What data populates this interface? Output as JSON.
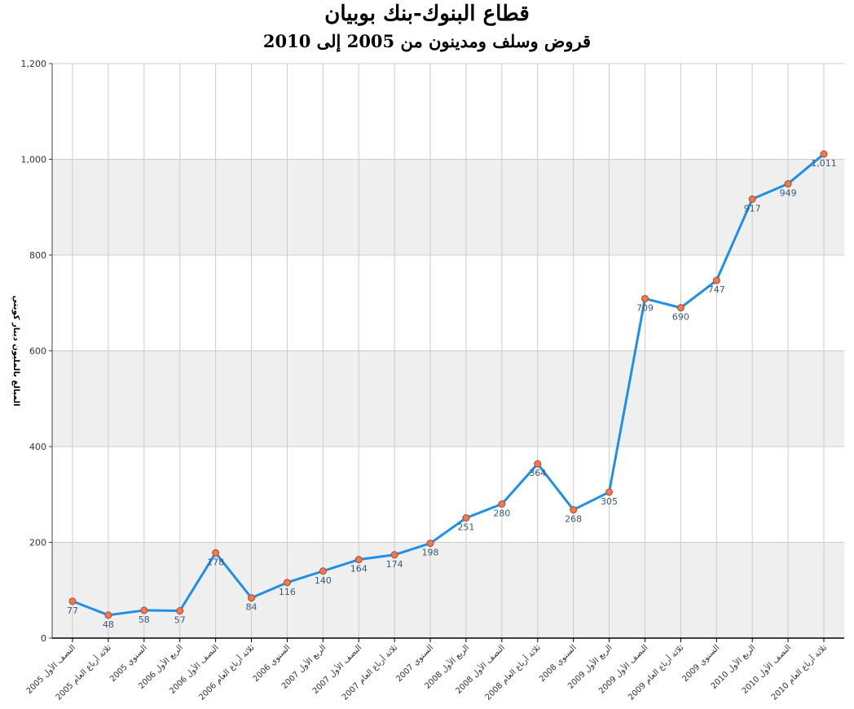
{
  "chart_data": {
    "type": "line",
    "title": "قطاع البنوك-بنك بوبيان",
    "subtitle": "قروض وسلف ومدينون من 2005 إلى 2010",
    "ylabel": "المبالغ بالمليون دينار كويتي",
    "xlabel": "",
    "ylim": [
      0,
      1200
    ],
    "yticks": [
      0,
      200,
      400,
      600,
      800,
      1000,
      1200
    ],
    "ytick_labels": [
      "0",
      "200",
      "400",
      "600",
      "800",
      "1,000",
      "1,200"
    ],
    "grid": true,
    "categories": [
      "النصف الأول 2005",
      "ثلاثة أرباع العام 2005",
      "السنوي 2005",
      "الربع الأول 2006",
      "النصف الأول 2006",
      "ثلاثة أرباع العام 2006",
      "السنوي 2006",
      "الربع الأول 2007",
      "النصف الأول 2007",
      "ثلاثة أرباع العام 2007",
      "السنوي 2007",
      "الربع الأول 2008",
      "النصف الأول 2008",
      "ثلاثة أرباع العام 2008",
      "السنوي 2008",
      "الربع الأول 2009",
      "النصف الأول 2009",
      "ثلاثة أرباع العام 2009",
      "السنوي 2009",
      "الربع الأول 2010",
      "النصف الأول 2010",
      "ثلاثة أرباع العام 2010"
    ],
    "values": [
      77,
      48,
      58,
      57,
      178,
      84,
      116,
      140,
      164,
      174,
      198,
      251,
      280,
      364,
      268,
      305,
      709,
      690,
      747,
      917,
      949,
      1011
    ],
    "value_labels": [
      "77",
      "48",
      "58",
      "57",
      "178",
      "84",
      "116",
      "140",
      "164",
      "174",
      "198",
      "251",
      "280",
      "364",
      "268",
      "305",
      "709",
      "690",
      "747",
      "917",
      "949",
      "1,011"
    ],
    "colors": {
      "line": "#1e90e8",
      "marker_fill": "#f07850",
      "marker_stroke": "#b04a28",
      "band": "#efefef",
      "grid": "#cccccc"
    }
  }
}
